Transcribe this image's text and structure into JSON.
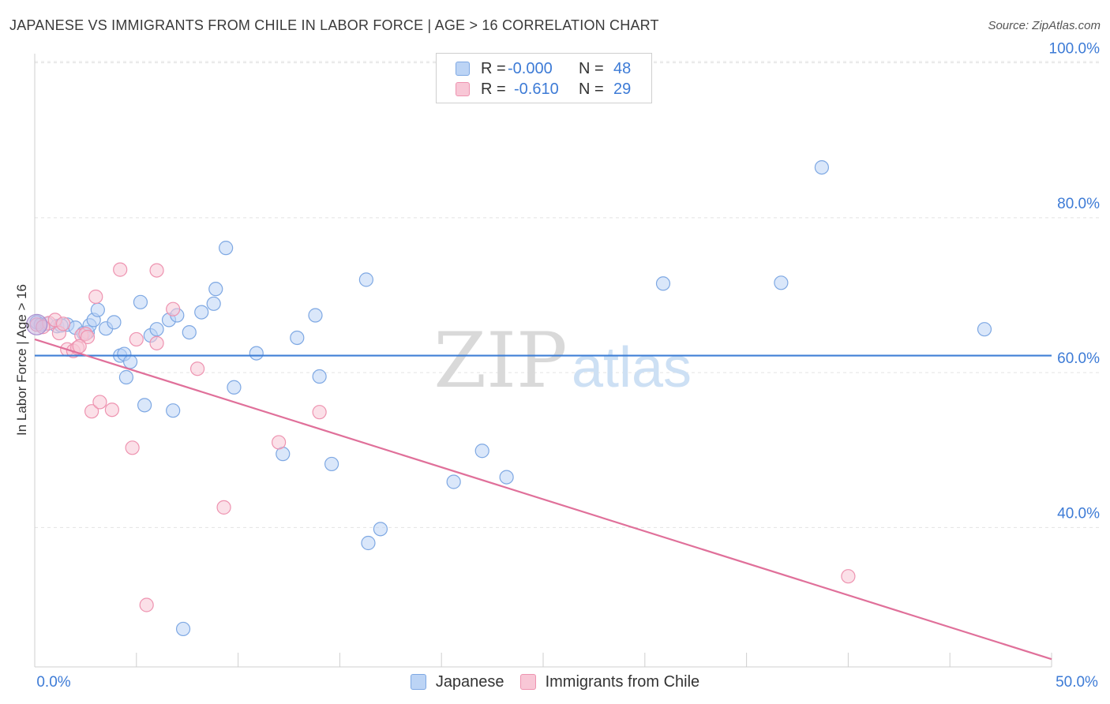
{
  "title": "JAPANESE VS IMMIGRANTS FROM CHILE IN LABOR FORCE | AGE > 16 CORRELATION CHART",
  "source": "Source: ZipAtlas.com",
  "watermark": {
    "zip": "ZIP",
    "atlas": "atlas"
  },
  "colors": {
    "blue_fill": "#bcd4f5",
    "blue_stroke": "#7ea8e3",
    "blue_line": "#3f7fd6",
    "pink_fill": "#f8c7d6",
    "pink_stroke": "#ee93b0",
    "pink_line": "#e0709a",
    "axis_text": "#3d7bd6",
    "grid": "#e3e3e3"
  },
  "legend_top": [
    {
      "series": "Japanese",
      "r_label": "R =",
      "r_value": "-0.000",
      "n_label": "N =",
      "n_value": "48"
    },
    {
      "series": "Immigrants from Chile",
      "r_label": "R =",
      "r_value": "-0.610",
      "n_label": "N =",
      "n_value": "29"
    }
  ],
  "chart_data": {
    "type": "scatter",
    "title": "JAPANESE VS IMMIGRANTS FROM CHILE IN LABOR FORCE | AGE > 16 CORRELATION CHART",
    "xlabel": "",
    "ylabel": "In Labor Force | Age > 16",
    "xlim": [
      0,
      50
    ],
    "ylim": [
      22,
      102
    ],
    "x_tick_labels": [
      "0.0%",
      "50.0%"
    ],
    "y_ticks": [
      40,
      60,
      80,
      100
    ],
    "y_tick_labels": [
      "40.0%",
      "60.0%",
      "80.0%",
      "100.0%"
    ],
    "grid": true,
    "legend": "bottom",
    "series": [
      {
        "name": "Japanese",
        "color": "#7ea8e3",
        "trend": {
          "x": [
            0,
            50
          ],
          "y": [
            62.2,
            62.2
          ]
        },
        "points": [
          [
            0.1,
            66.5
          ],
          [
            0.6,
            66.3
          ],
          [
            1.1,
            66.0
          ],
          [
            1.6,
            66.2
          ],
          [
            2.0,
            65.8
          ],
          [
            2.4,
            65.1
          ],
          [
            2.6,
            65.2
          ],
          [
            2.7,
            66.1
          ],
          [
            2.9,
            66.8
          ],
          [
            3.1,
            68.1
          ],
          [
            3.5,
            65.7
          ],
          [
            3.9,
            66.5
          ],
          [
            4.2,
            62.2
          ],
          [
            4.4,
            62.4
          ],
          [
            4.5,
            59.4
          ],
          [
            4.7,
            61.4
          ],
          [
            5.2,
            69.1
          ],
          [
            5.4,
            55.8
          ],
          [
            5.7,
            64.8
          ],
          [
            6.0,
            65.6
          ],
          [
            6.6,
            66.8
          ],
          [
            6.8,
            55.1
          ],
          [
            7.0,
            67.4
          ],
          [
            7.3,
            26.9
          ],
          [
            7.6,
            65.2
          ],
          [
            8.2,
            67.8
          ],
          [
            8.8,
            68.9
          ],
          [
            8.9,
            70.8
          ],
          [
            9.4,
            76.1
          ],
          [
            9.8,
            58.1
          ],
          [
            10.9,
            62.5
          ],
          [
            12.2,
            49.5
          ],
          [
            12.9,
            64.5
          ],
          [
            13.8,
            67.4
          ],
          [
            14.0,
            59.5
          ],
          [
            14.6,
            48.2
          ],
          [
            16.3,
            72.0
          ],
          [
            16.4,
            38.0
          ],
          [
            17.0,
            39.8
          ],
          [
            20.6,
            45.9
          ],
          [
            22.0,
            49.9
          ],
          [
            23.2,
            46.5
          ],
          [
            30.9,
            71.5
          ],
          [
            36.7,
            71.6
          ],
          [
            38.7,
            86.5
          ],
          [
            46.7,
            65.6
          ],
          [
            0.3,
            66.2
          ],
          [
            1.3,
            66.1
          ]
        ]
      },
      {
        "name": "Immigrants from Chile",
        "color": "#ee93b0",
        "trend": {
          "x": [
            0,
            50
          ],
          "y": [
            64.3,
            23.0
          ]
        },
        "points": [
          [
            0.1,
            66.2
          ],
          [
            0.7,
            66.4
          ],
          [
            1.0,
            66.8
          ],
          [
            1.2,
            65.1
          ],
          [
            1.6,
            63.0
          ],
          [
            1.9,
            62.8
          ],
          [
            2.1,
            63.2
          ],
          [
            2.3,
            64.8
          ],
          [
            2.5,
            65.0
          ],
          [
            2.6,
            64.6
          ],
          [
            2.8,
            55.0
          ],
          [
            3.0,
            69.8
          ],
          [
            3.2,
            56.2
          ],
          [
            3.8,
            55.2
          ],
          [
            4.2,
            73.3
          ],
          [
            4.8,
            50.3
          ],
          [
            5.0,
            64.3
          ],
          [
            5.5,
            30.0
          ],
          [
            6.0,
            73.2
          ],
          [
            6.0,
            63.8
          ],
          [
            6.8,
            68.2
          ],
          [
            8.0,
            60.5
          ],
          [
            9.3,
            42.6
          ],
          [
            12.0,
            51.0
          ],
          [
            14.0,
            54.9
          ],
          [
            40.0,
            33.7
          ],
          [
            1.4,
            66.3
          ],
          [
            0.4,
            65.9
          ],
          [
            2.2,
            63.4
          ]
        ]
      }
    ]
  }
}
